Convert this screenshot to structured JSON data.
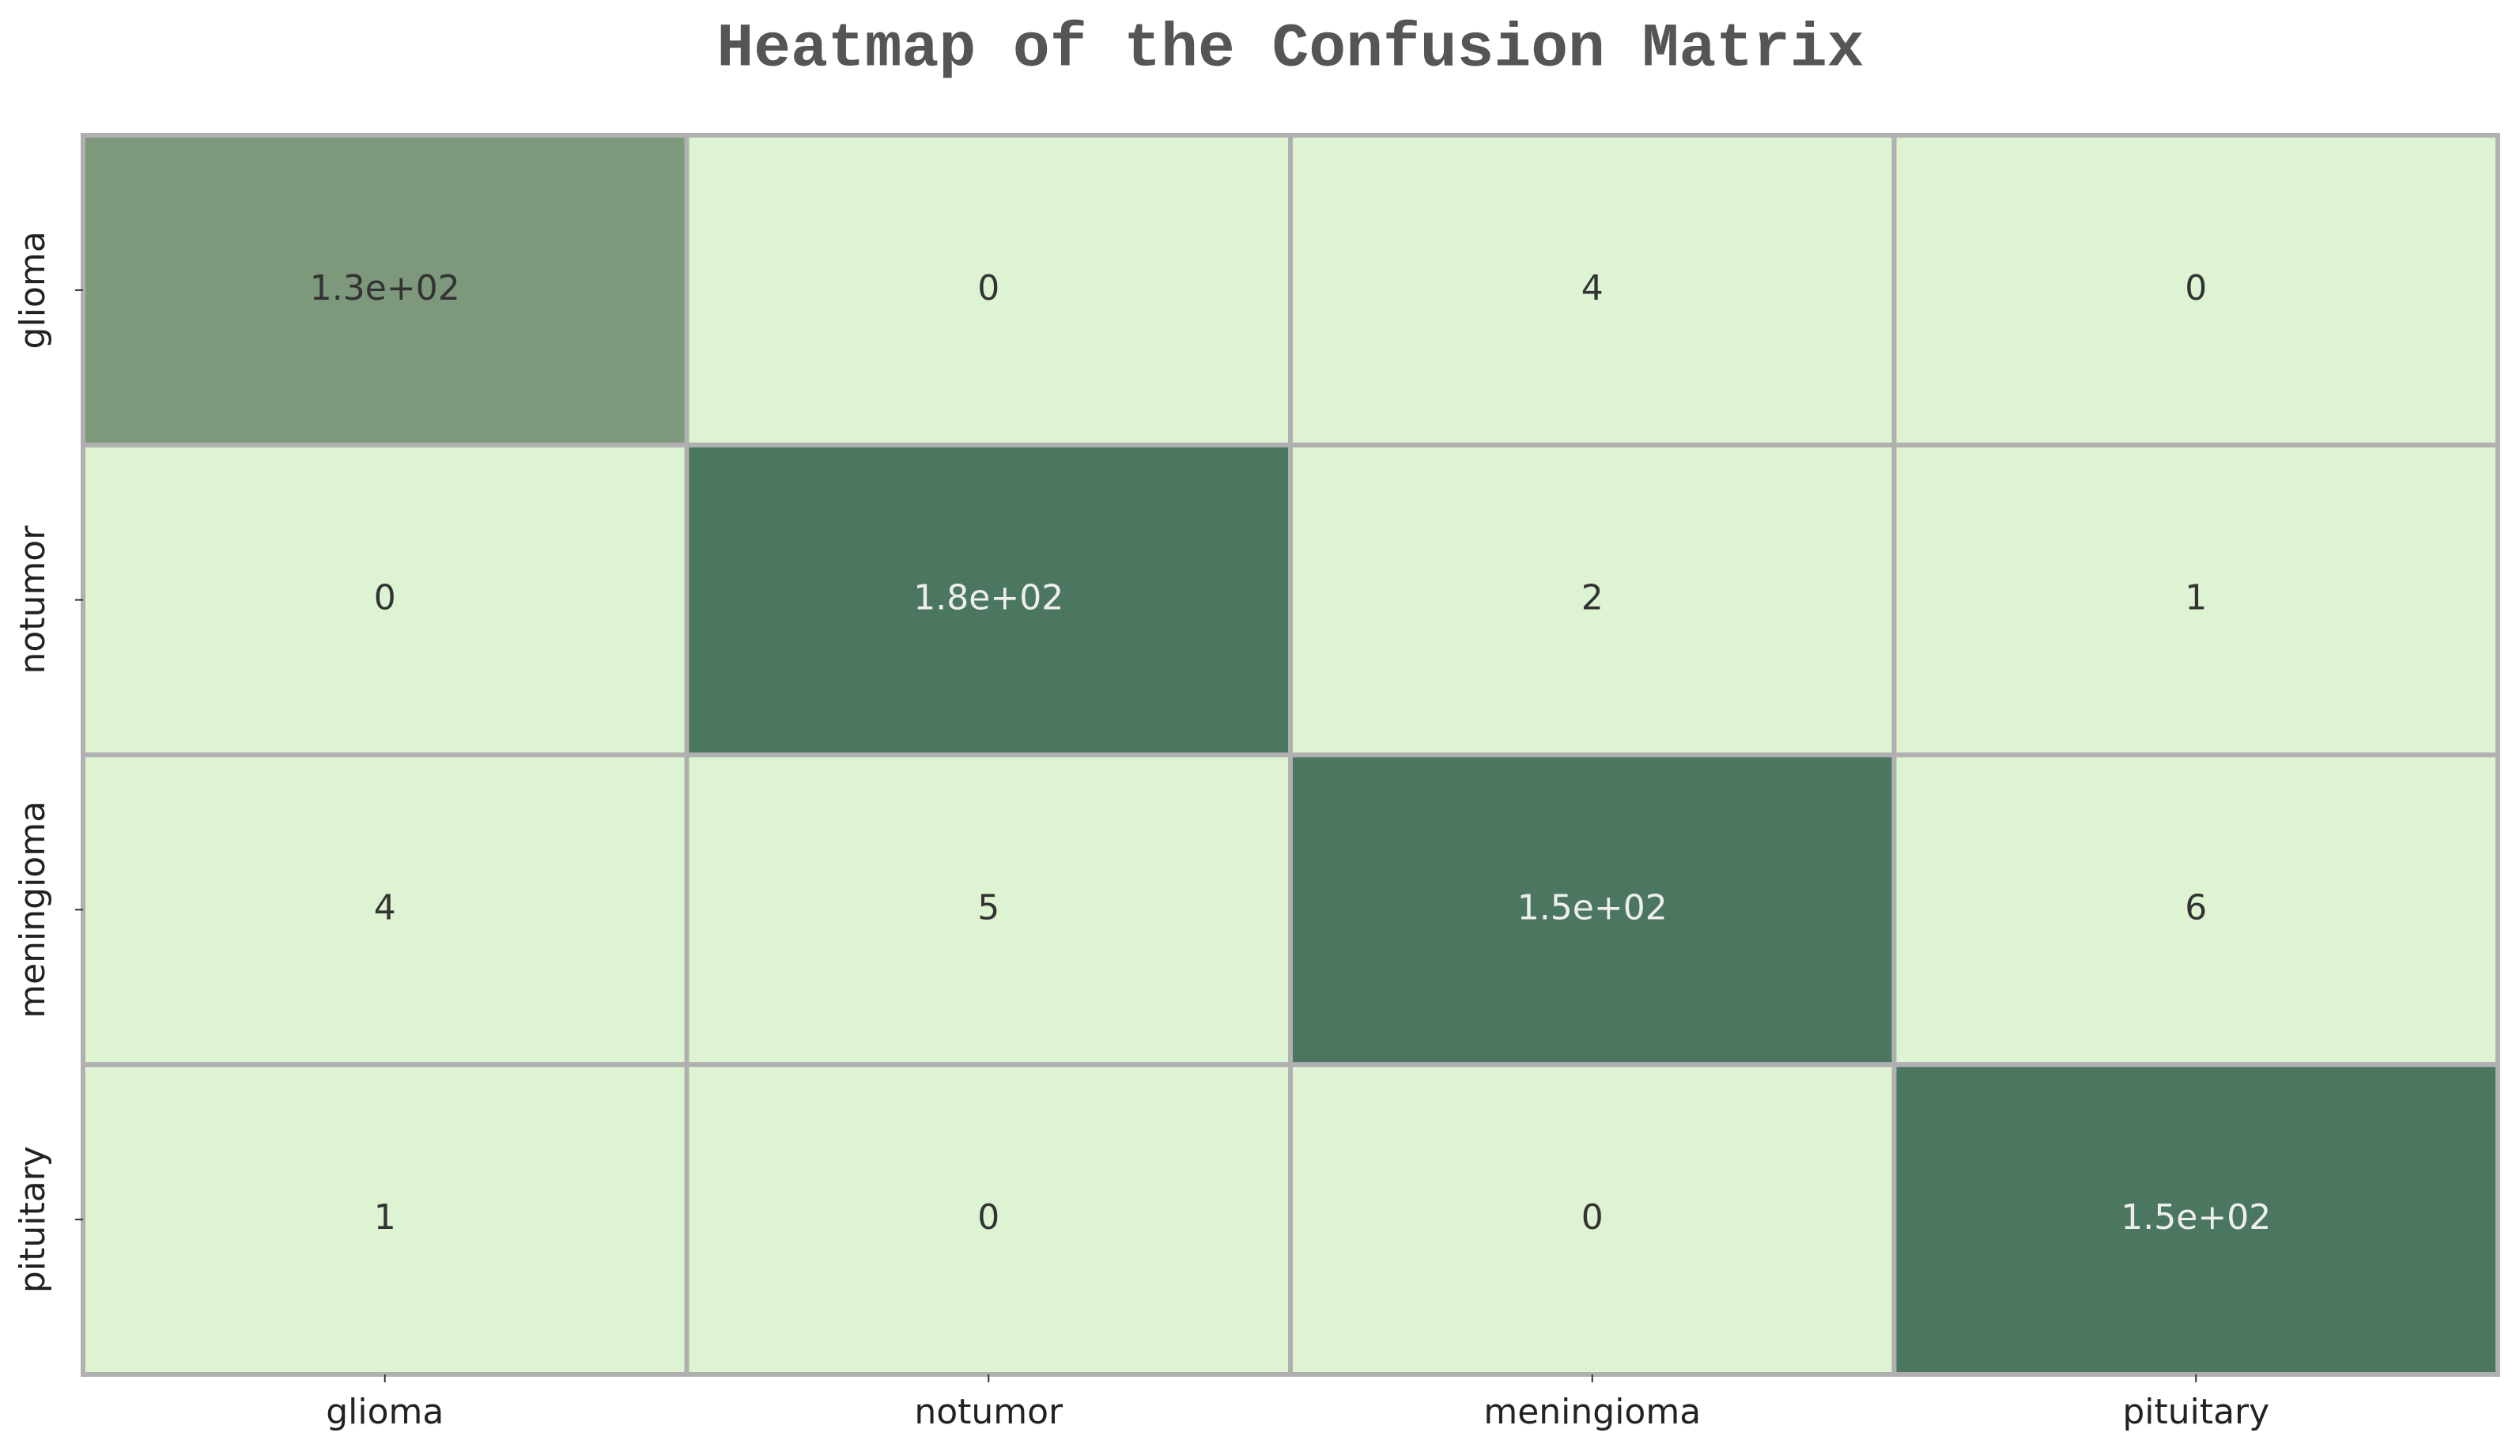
{
  "chart_data": {
    "type": "heatmap",
    "title": "Heatmap of the Confusion Matrix",
    "x_categories": [
      "glioma",
      "notumor",
      "meningioma",
      "pituitary"
    ],
    "y_categories": [
      "glioma",
      "notumor",
      "meningioma",
      "pituitary"
    ],
    "values": [
      [
        130,
        0,
        4,
        0
      ],
      [
        0,
        180,
        2,
        1
      ],
      [
        4,
        5,
        150,
        6
      ],
      [
        1,
        0,
        0,
        150
      ]
    ],
    "value_labels": [
      [
        "1.3e+02",
        "0",
        "4",
        "0"
      ],
      [
        "0",
        "1.8e+02",
        "2",
        "1"
      ],
      [
        "4",
        "5",
        "1.5e+02",
        "6"
      ],
      [
        "1",
        "0",
        "0",
        "1.5e+02"
      ]
    ],
    "colors": [
      [
        "#7d987a",
        "#ddf3d1",
        "#ddf3d1",
        "#ddf3d1"
      ],
      [
        "#ddf3d1",
        "#4b7761",
        "#ddf3d1",
        "#ddf3d1"
      ],
      [
        "#ddf3d1",
        "#ddf3d1",
        "#4b7761",
        "#ddf3d1"
      ],
      [
        "#ddf3d1",
        "#ddf3d1",
        "#ddf3d1",
        "#4b7761"
      ]
    ],
    "cell_border_color": "#b0b0b0"
  }
}
